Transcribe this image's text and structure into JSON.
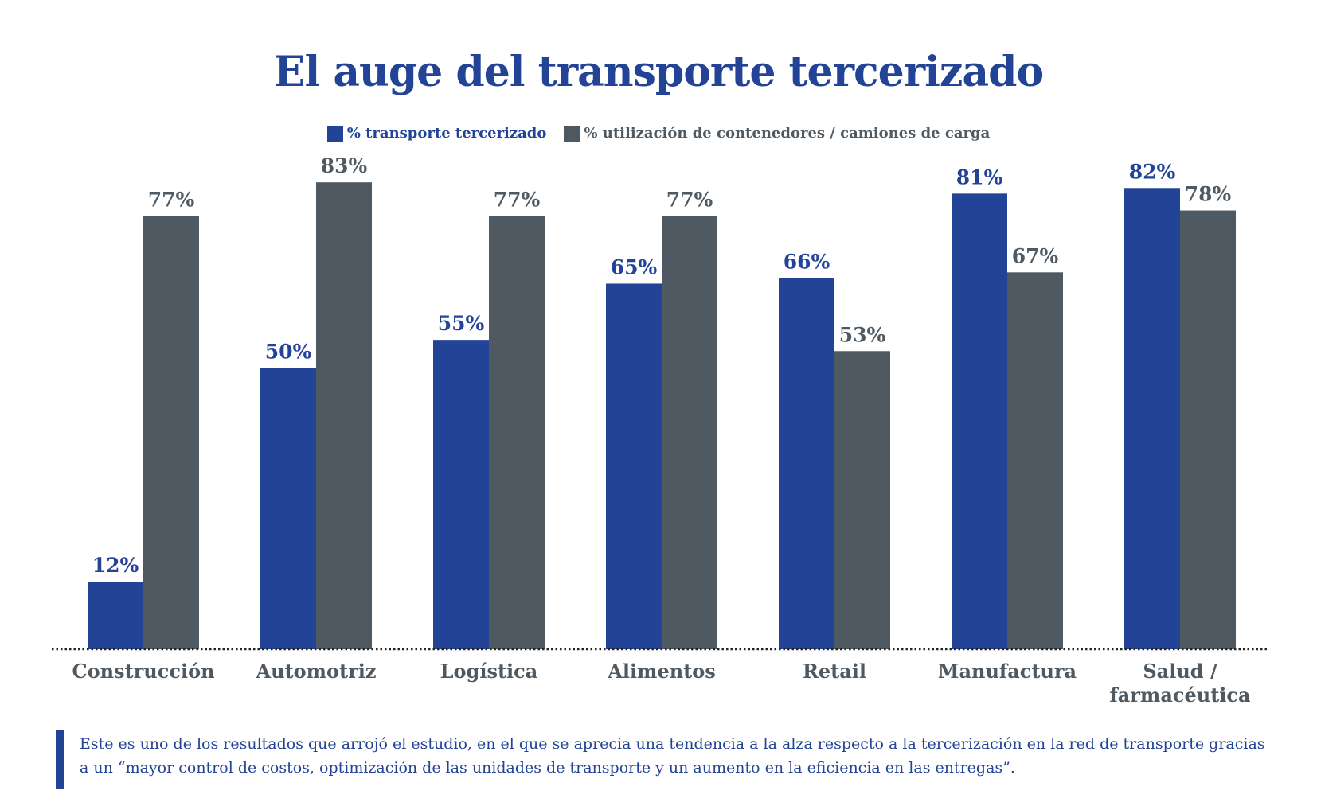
{
  "chart_data": {
    "type": "bar",
    "title": "El auge del transporte tercerizado",
    "categories": [
      "Construcción",
      "Automotriz",
      "Logística",
      "Alimentos",
      "Retail",
      "Manufactura",
      "Salud / farmacéutica"
    ],
    "series": [
      {
        "name": "% transporte tercerizado",
        "color": "#234496",
        "values": [
          12,
          50,
          55,
          65,
          66,
          81,
          82
        ],
        "labels": [
          "12%",
          "50%",
          "55%",
          "65%",
          "66%",
          "81%",
          "82%"
        ]
      },
      {
        "name": "% utilización de contenedores / camiones de carga",
        "color": "#4f5961",
        "values": [
          77,
          83,
          77,
          77,
          53,
          67,
          78
        ],
        "labels": [
          "77%",
          "83%",
          "77%",
          "77%",
          "53%",
          "67%",
          "78%"
        ]
      }
    ],
    "ylim": [
      0,
      100
    ],
    "grid": false,
    "legend_position": "top-center"
  },
  "note": "Este es uno de los resultados que arrojó el estudio, en el que se aprecia una tendencia a la alza respecto a la tercerización en la red de transporte gracias a un “mayor control de costos, optimización de las unidades de transporte y un aumento en la eficiencia en las entregas”."
}
